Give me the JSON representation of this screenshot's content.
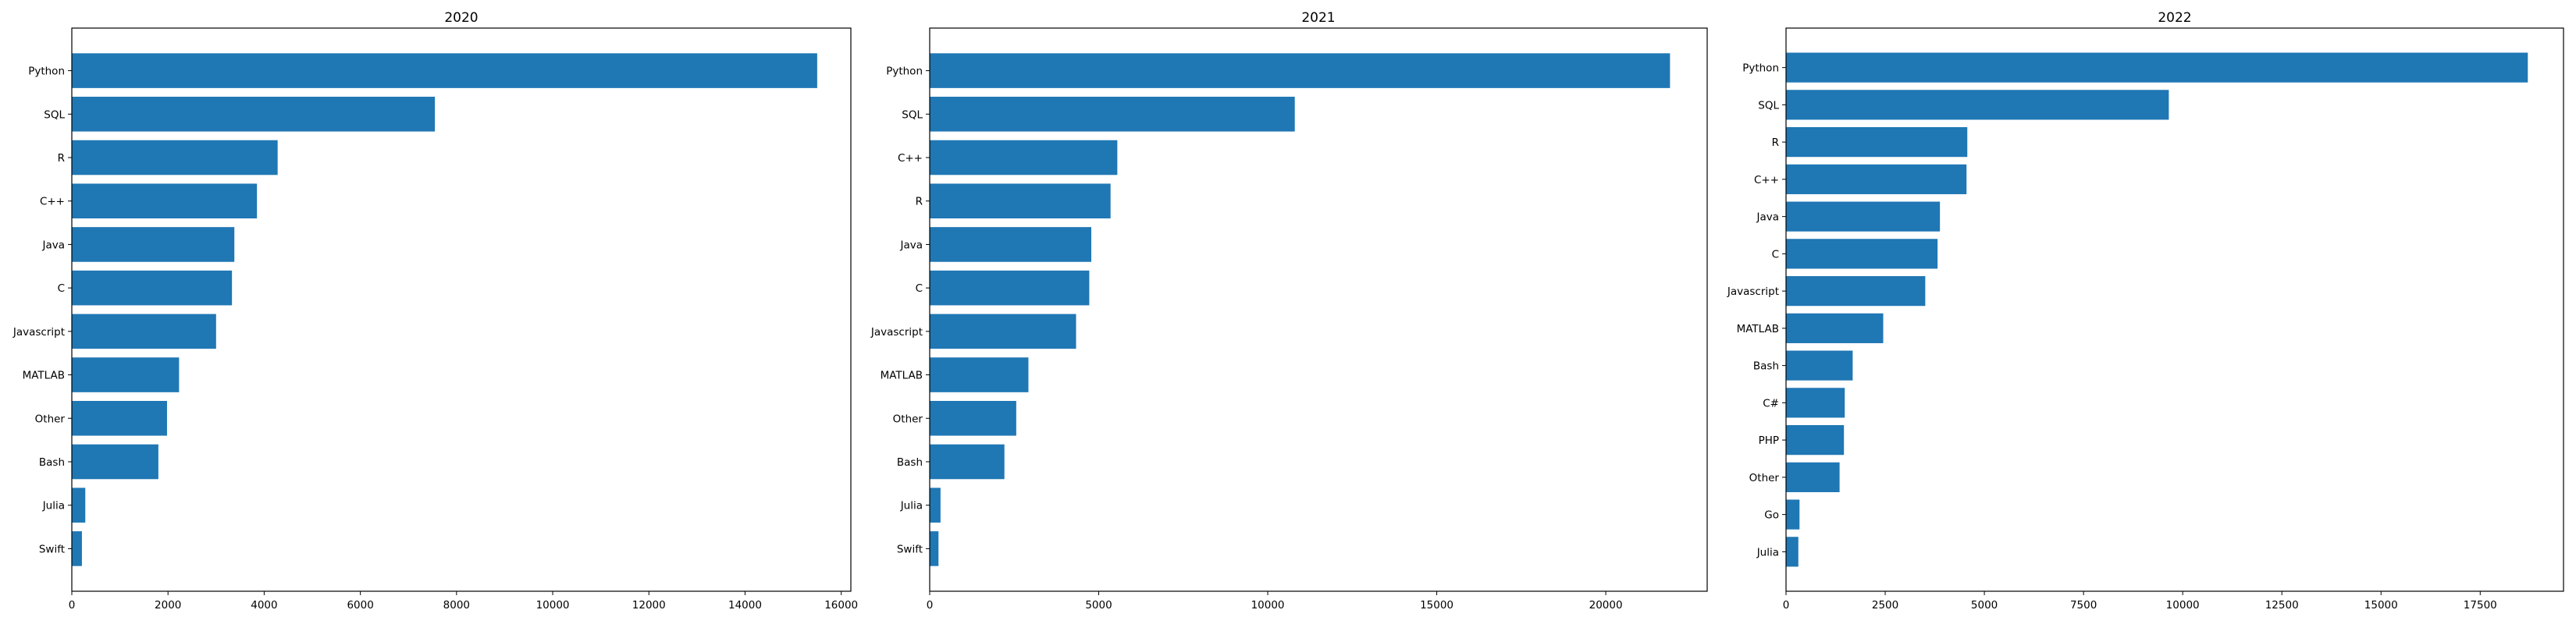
{
  "chart_data": [
    {
      "type": "bar",
      "orientation": "horizontal",
      "title": "2020",
      "xlabel": "",
      "ylabel": "",
      "xlim": [
        0,
        16200
      ],
      "xticks": [
        0,
        2000,
        4000,
        6000,
        8000,
        10000,
        12000,
        14000,
        16000
      ],
      "xtick_labels": [
        "0",
        "2000",
        "4000",
        "6000",
        "8000",
        "10000",
        "12000",
        "14000",
        "16000"
      ],
      "grid": false,
      "categories": [
        "Python",
        "SQL",
        "R",
        "C++",
        "Java",
        "C",
        "Javascript",
        "MATLAB",
        "Other",
        "Bash",
        "Julia",
        "Swift"
      ],
      "values": [
        15500,
        7550,
        4280,
        3850,
        3380,
        3330,
        3000,
        2230,
        1980,
        1800,
        280,
        210
      ],
      "color": "#1f77b4"
    },
    {
      "type": "bar",
      "orientation": "horizontal",
      "title": "2021",
      "xlabel": "",
      "ylabel": "",
      "xlim": [
        0,
        23000
      ],
      "xticks": [
        0,
        5000,
        10000,
        15000,
        20000
      ],
      "xtick_labels": [
        "0",
        "5000",
        "10000",
        "15000",
        "20000"
      ],
      "grid": false,
      "categories": [
        "Python",
        "SQL",
        "C++",
        "R",
        "Java",
        "C",
        "Javascript",
        "MATLAB",
        "Other",
        "Bash",
        "Julia",
        "Swift"
      ],
      "values": [
        21900,
        10800,
        5550,
        5350,
        4780,
        4720,
        4330,
        2920,
        2560,
        2210,
        320,
        260
      ],
      "color": "#1f77b4"
    },
    {
      "type": "bar",
      "orientation": "horizontal",
      "title": "2022",
      "xlabel": "",
      "ylabel": "",
      "xlim": [
        0,
        19600
      ],
      "xticks": [
        0,
        2500,
        5000,
        7500,
        10000,
        12500,
        15000,
        17500
      ],
      "xtick_labels": [
        "0",
        "2500",
        "5000",
        "7500",
        "10000",
        "12500",
        "15000",
        "17500"
      ],
      "grid": false,
      "categories": [
        "Python",
        "SQL",
        "R",
        "C++",
        "Java",
        "C",
        "Javascript",
        "MATLAB",
        "Bash",
        "C#",
        "PHP",
        "Other",
        "Go",
        "Julia"
      ],
      "values": [
        18700,
        9650,
        4570,
        4550,
        3880,
        3820,
        3510,
        2450,
        1680,
        1480,
        1460,
        1350,
        340,
        310
      ],
      "color": "#1f77b4"
    }
  ]
}
